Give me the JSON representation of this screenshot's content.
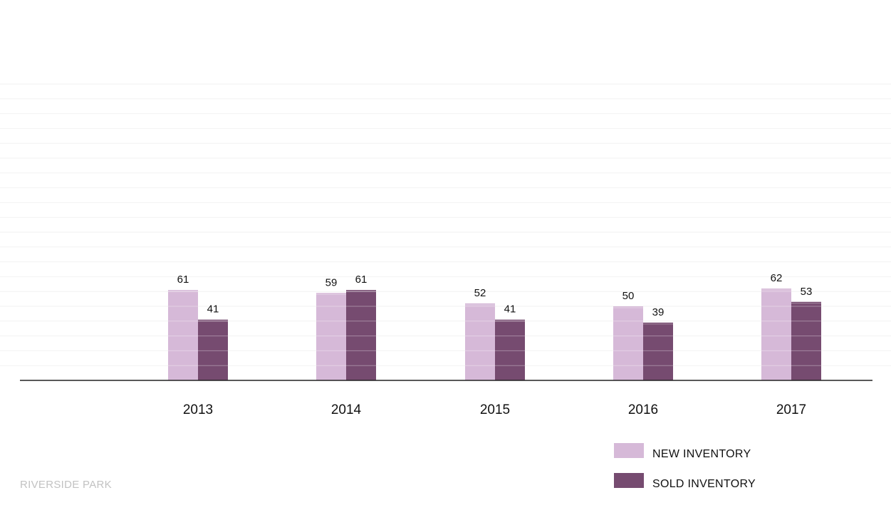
{
  "chart_data": {
    "type": "bar",
    "categories": [
      "2013",
      "2014",
      "2015",
      "2016",
      "2017"
    ],
    "series": [
      {
        "name": "NEW INVENTORY",
        "values": [
          61,
          59,
          52,
          50,
          62
        ],
        "color": "#d6b9d8"
      },
      {
        "name": "SOLD INVENTORY",
        "values": [
          41,
          61,
          41,
          39,
          53
        ],
        "color": "#764b70"
      }
    ],
    "ylim": [
      0,
      200
    ],
    "grid": true,
    "legend": "bottom-right",
    "axis_color": "#222222",
    "grid_color": "#f2f2f2",
    "bar_stripe_color": "#ffffff"
  },
  "footer": {
    "label": "RIVERSIDE PARK"
  }
}
